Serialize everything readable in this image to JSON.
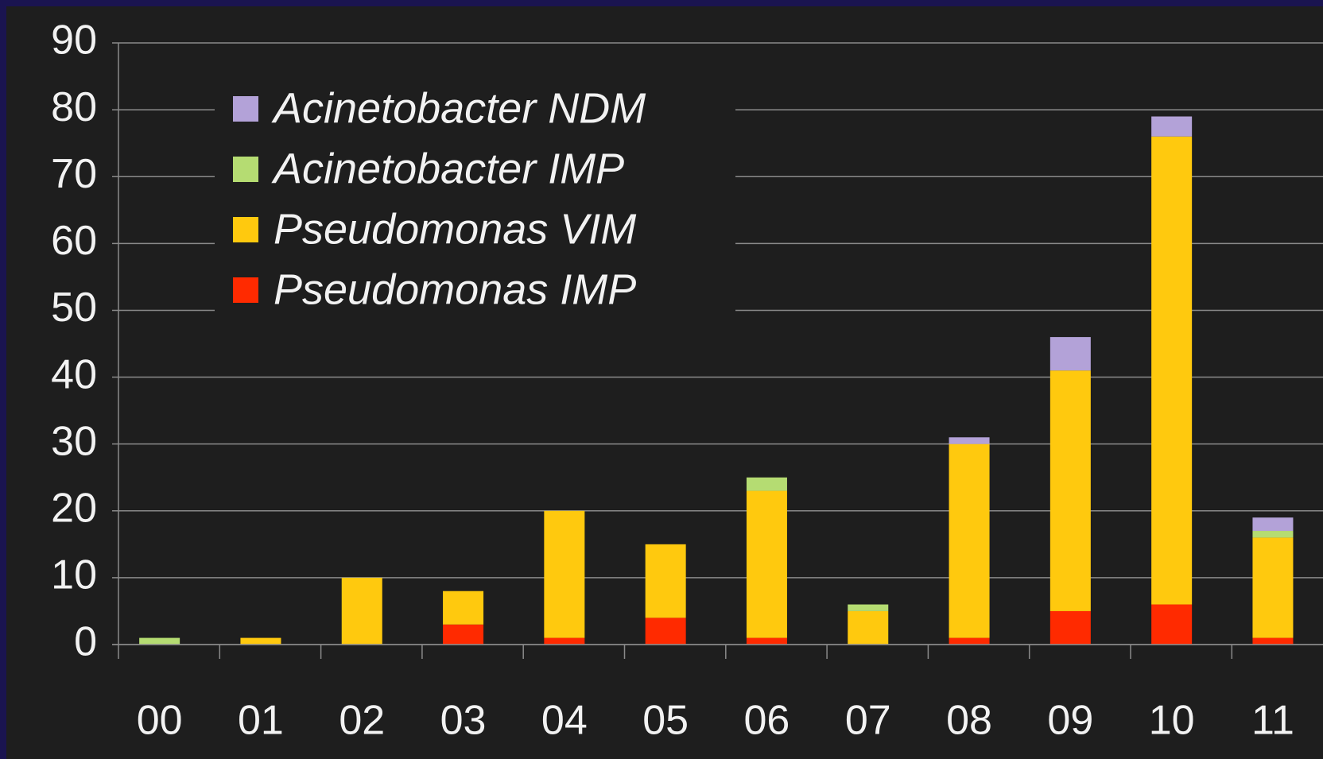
{
  "chart_data": {
    "type": "stacked_bar",
    "categories": [
      "00",
      "01",
      "02",
      "03",
      "04",
      "05",
      "06",
      "07",
      "08",
      "09",
      "10",
      "11"
    ],
    "series": [
      {
        "name": "Pseudomonas IMP",
        "color": "#ff2a00",
        "values": [
          0,
          0,
          0,
          3,
          1,
          4,
          1,
          0,
          1,
          5,
          6,
          1
        ]
      },
      {
        "name": "Pseudomonas VIM",
        "color": "#ffc90e",
        "values": [
          0,
          1,
          10,
          5,
          19,
          11,
          22,
          5,
          29,
          36,
          70,
          15
        ]
      },
      {
        "name": "Acinetobacter IMP",
        "color": "#b5dc72",
        "values": [
          1,
          0,
          0,
          0,
          0,
          0,
          2,
          1,
          0,
          0,
          0,
          1
        ]
      },
      {
        "name": "Acinetobacter NDM",
        "color": "#b3a2d8",
        "values": [
          0,
          0,
          0,
          0,
          0,
          0,
          0,
          0,
          1,
          5,
          3,
          2
        ]
      }
    ],
    "ylim": [
      0,
      90
    ],
    "yticks": [
      0,
      10,
      20,
      30,
      40,
      50,
      60,
      70,
      80,
      90
    ],
    "grid": true,
    "legend": "upper left"
  }
}
